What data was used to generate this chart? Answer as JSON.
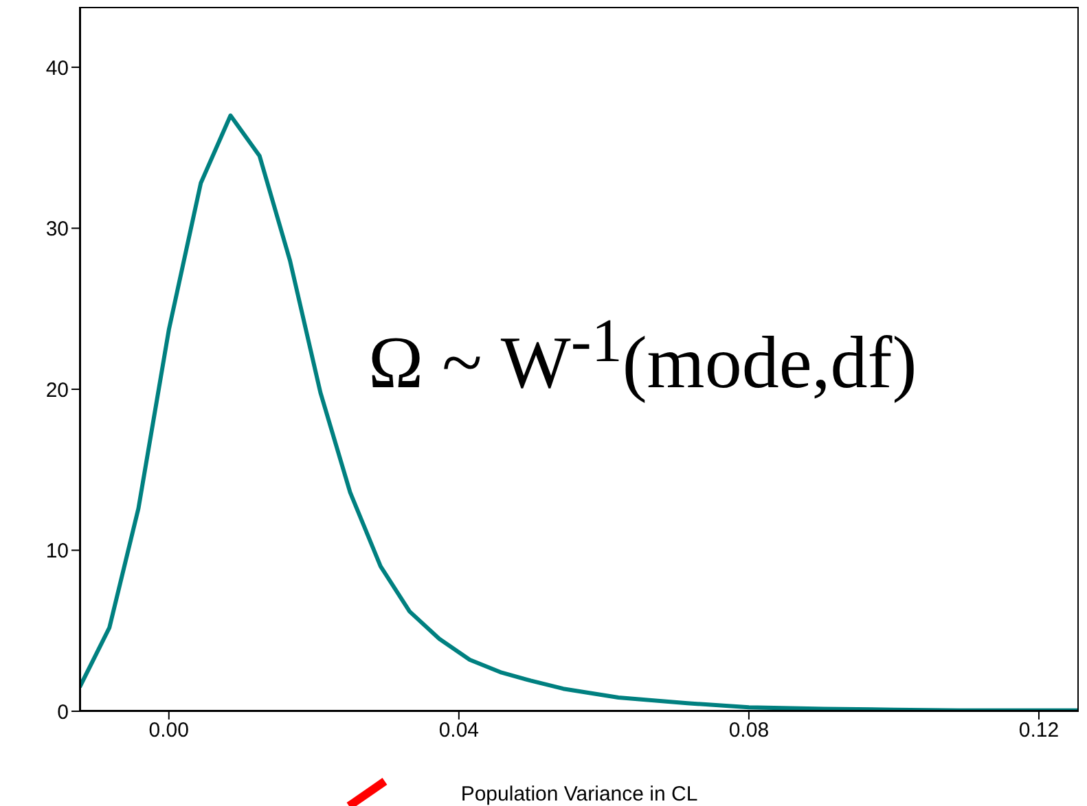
{
  "chart_data": {
    "type": "line",
    "xlabel": "Population Variance in CL",
    "annotations": [
      "Ω ~ W$^{-1}$(mode,df)"
    ],
    "x": [
      -0.0123,
      -0.0082,
      -0.0042,
      0.0,
      0.0044,
      0.0085,
      0.0125,
      0.0167,
      0.0209,
      0.025,
      0.0292,
      0.0332,
      0.0373,
      0.0415,
      0.0459,
      0.0499,
      0.0544,
      0.062,
      0.0715,
      0.08,
      0.0904,
      0.1,
      0.109,
      0.119,
      0.1255
    ],
    "series": [
      {
        "color": "#008080",
        "values": [
          1.5,
          5.2,
          12.6,
          23.7,
          32.8,
          37.0,
          34.5,
          28.0,
          19.8,
          13.6,
          9.0,
          6.2,
          4.5,
          3.2,
          2.4,
          1.9,
          1.4,
          0.85,
          0.5,
          0.25,
          0.15,
          0.1,
          0.05,
          0.05,
          0.05
        ]
      }
    ],
    "xlim": [
      -0.0123,
      0.1255
    ],
    "xticks": [
      {
        "value": 0,
        "label": "0.00"
      },
      {
        "value": 0.04,
        "label": "0.04"
      },
      {
        "value": 0.08,
        "label": "0.08"
      },
      {
        "value": 0.12,
        "label": "0.12"
      }
    ],
    "ylim": [
      0,
      43.75
    ],
    "yticks": [
      0,
      10,
      20,
      30,
      40
    ],
    "grid": false,
    "legend": false,
    "marker": "none",
    "line_style": "solid"
  }
}
